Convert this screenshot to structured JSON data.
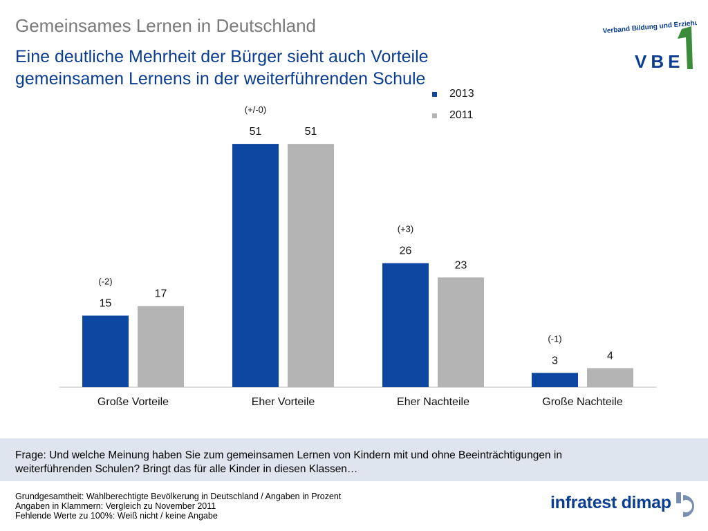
{
  "header": {
    "supertitle": "Gemeinsames Lernen in Deutschland",
    "headline": "Eine deutliche Mehrheit der Bürger sieht auch Vorteile gemeinsamen Lernens in der weiterführenden Schule"
  },
  "logo_vbe": {
    "line1": "Verband Bildung und Erziehung",
    "line2": "VBE"
  },
  "chart_data": {
    "type": "bar",
    "title": "",
    "xlabel": "",
    "ylabel": "Angaben in Prozent",
    "ylim": [
      0,
      55
    ],
    "categories": [
      "Große Vorteile",
      "Eher Vorteile",
      "Eher Nachteile",
      "Große Nachteile"
    ],
    "series": [
      {
        "name": "2013",
        "values": [
          15,
          51,
          26,
          3
        ],
        "color": "#0d47a1"
      },
      {
        "name": "2011",
        "values": [
          17,
          51,
          23,
          4
        ],
        "color": "#b4b4b4"
      }
    ],
    "changes": [
      "(-2)",
      "(+/-0)",
      "(+3)",
      "(-1)"
    ],
    "legend_position": "top-right",
    "grid": false
  },
  "question": {
    "text": "Frage: Und welche Meinung haben Sie zum gemeinsamen Lernen von Kindern mit und ohne Beeinträchtigungen in weiterführenden Schulen? Bringt das für alle Kinder in diesen Klassen…"
  },
  "footnotes": {
    "line1": "Grundgesamtheit: Wahlberechtigte Bevölkerung in Deutschland / Angaben in Prozent",
    "line2": "Angaben in Klammern: Vergleich zu November 2011",
    "line3": "Fehlende Werte zu 100%: Weiß nicht / keine Angabe"
  },
  "logo_infratest": {
    "text": "infratest dimap"
  },
  "colors": {
    "primary_blue": "#0d47a1",
    "secondary_gray": "#b4b4b4",
    "headline_blue": "#0b3d91",
    "logo_green": "#3c8c3c"
  }
}
